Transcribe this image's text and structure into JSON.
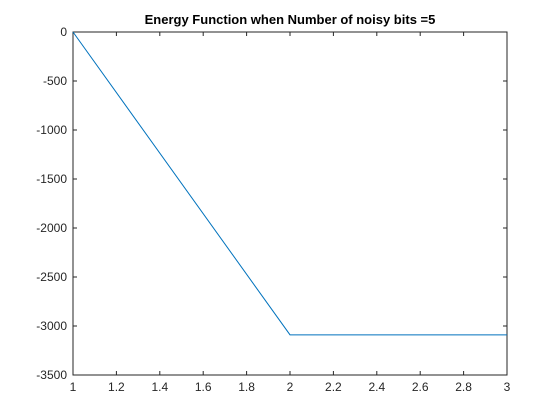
{
  "chart_data": {
    "type": "line",
    "title": "Energy Function when Number of noisy bits =5",
    "xlabel": "",
    "ylabel": "",
    "xlim": [
      1,
      3
    ],
    "ylim": [
      -3500,
      0
    ],
    "x_ticks": [
      1,
      1.2,
      1.4,
      1.6,
      1.8,
      2,
      2.2,
      2.4,
      2.6,
      2.8,
      3
    ],
    "x_tick_labels": [
      "1",
      "1.2",
      "1.4",
      "1.6",
      "1.8",
      "2",
      "2.2",
      "2.4",
      "2.6",
      "2.8",
      "3"
    ],
    "y_ticks": [
      0,
      -500,
      -1000,
      -1500,
      -2000,
      -2500,
      -3000,
      -3500
    ],
    "y_tick_labels": [
      "0",
      "-500",
      "-1000",
      "-1500",
      "-2000",
      "-2500",
      "-3000",
      "-3500"
    ],
    "grid": false,
    "box": true,
    "series": [
      {
        "x": [
          1,
          2,
          3
        ],
        "values": [
          0,
          -3090,
          -3090
        ],
        "color": "#0072bd"
      }
    ]
  }
}
